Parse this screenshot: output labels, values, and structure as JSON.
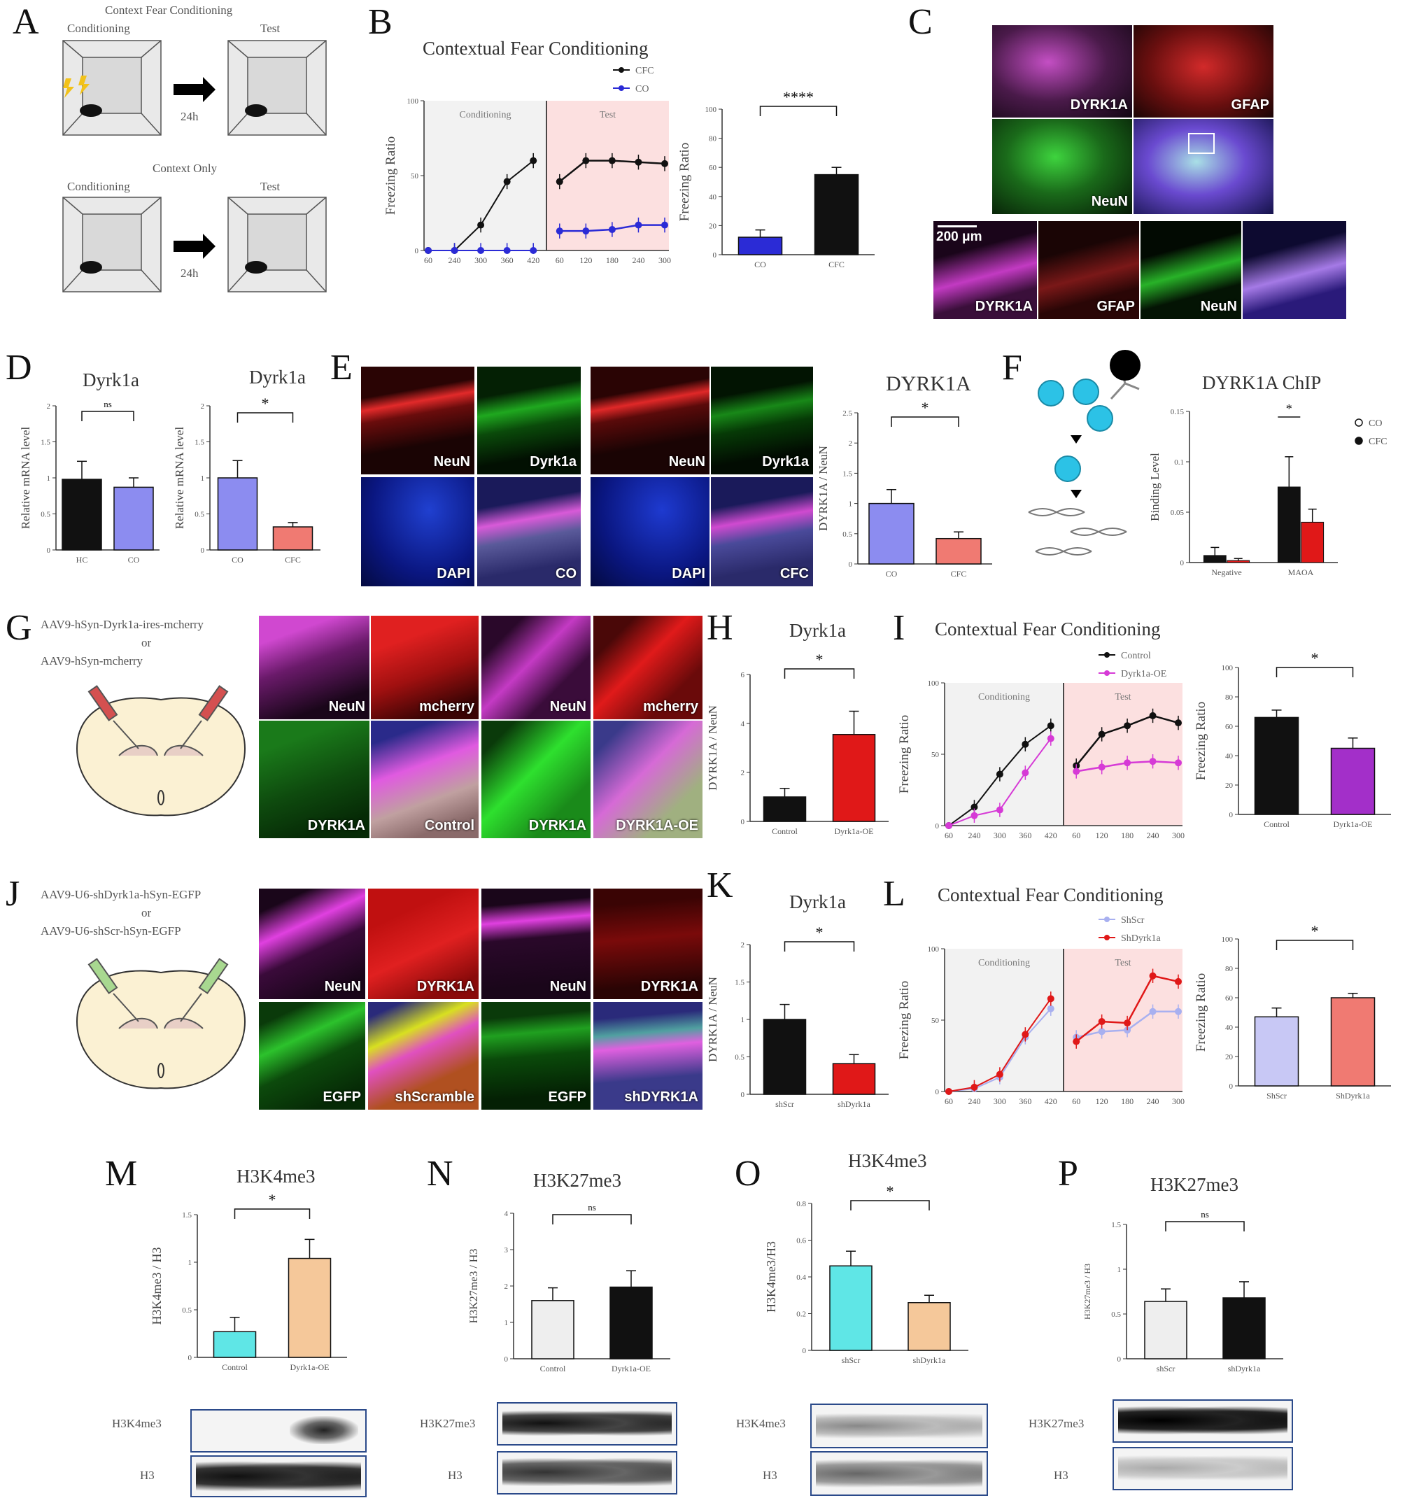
{
  "panel_letters": [
    "A",
    "B",
    "C",
    "D",
    "E",
    "F",
    "G",
    "H",
    "I",
    "J",
    "K",
    "L",
    "M",
    "N",
    "O",
    "P"
  ],
  "A": {
    "top_title": "Context Fear Conditioning",
    "bottom_title": "Context Only",
    "conditioning": "Conditioning",
    "test": "Test",
    "delay": "24h"
  },
  "B": {
    "title": "Contextual  Fear Conditioning",
    "legend": [
      "CFC",
      "CO"
    ],
    "phase_conditioning": "Conditioning",
    "phase_test": "Test",
    "ylabel": "Freezing  Ratio",
    "sig": "****",
    "bar_ylabel": "Freezing  Ratio"
  },
  "C": {
    "labels": [
      "DYRK1A",
      "GFAP",
      "NeuN"
    ],
    "scalebar": "200 μm",
    "strip_labels": [
      "DYRK1A",
      "GFAP",
      "NeuN"
    ]
  },
  "D": {
    "title_left": "Dyrk1a",
    "title_right": "Dyrk1a",
    "ylabel": "Relative mRNA level",
    "ns": "ns",
    "sig": "*"
  },
  "E": {
    "labels": [
      "NeuN",
      "Dyrk1a",
      "NeuN",
      "Dyrk1a",
      "DAPI",
      "CO",
      "DAPI",
      "CFC"
    ],
    "title": "DYRK1A",
    "ylabel": "DYRK1A / NeuN",
    "sig": "*"
  },
  "F": {
    "title": "DYRK1A ChIP",
    "ylabel": "Binding Level",
    "legend": [
      "CO",
      "CFC"
    ],
    "sig": "*"
  },
  "G": {
    "vector1": "AAV9-hSyn-Dyrk1a-ires-mcherry",
    "or": "or",
    "vector2": "AAV9-hSyn-mcherry",
    "labels": [
      "NeuN",
      "mcherry",
      "NeuN",
      "mcherry",
      "DYRK1A",
      "Control",
      "DYRK1A",
      "DYRK1A-OE"
    ]
  },
  "H": {
    "title": "Dyrk1a",
    "ylabel": "DYRK1A / NeuN",
    "sig": "*"
  },
  "I": {
    "title": "Contextual  Fear Conditioning",
    "legend": [
      "Control",
      "Dyrk1a-OE"
    ],
    "phase_conditioning": "Conditioning",
    "phase_test": "Test",
    "ylabel": "Freezing  Ratio",
    "sig": "*"
  },
  "J": {
    "vector1": "AAV9-U6-shDyrk1a-hSyn-EGFP",
    "or": "or",
    "vector2": "AAV9-U6-shScr-hSyn-EGFP",
    "labels": [
      "NeuN",
      "DYRK1A",
      "NeuN",
      "DYRK1A",
      "EGFP",
      "shScramble",
      "EGFP",
      "shDYRK1A"
    ]
  },
  "K": {
    "title": "Dyrk1a",
    "ylabel": "DYRK1A / NeuN",
    "sig": "*"
  },
  "L": {
    "title": "Contextual  Fear Conditioning",
    "legend": [
      "ShScr",
      "ShDyrk1a"
    ],
    "phase_conditioning": "Conditioning",
    "phase_test": "Test",
    "ylabel": "Freezing  Ratio",
    "sig": "*"
  },
  "M": {
    "title": "H3K4me3",
    "ylabel": "H3K4me3 / H3",
    "sig": "*",
    "blot_labels": [
      "H3K4me3",
      "H3"
    ]
  },
  "N": {
    "title": "H3K27me3",
    "ylabel": "H3K27me3 / H3",
    "sig": "ns",
    "blot_labels": [
      "H3K27me3",
      "H3"
    ]
  },
  "O": {
    "title": "H3K4me3",
    "ylabel": "H3K4me3/H3",
    "sig": "*",
    "blot_labels": [
      "H3K4me3",
      "H3"
    ]
  },
  "P": {
    "title": "H3K27me3",
    "ylabel": "H3K27me3 / H3",
    "sig": "ns",
    "blot_labels": [
      "H3K27me3",
      "H3"
    ]
  },
  "chart_data": [
    {
      "id": "B-line",
      "type": "line",
      "title": "Contextual  Fear Conditioning",
      "ylabel": "Freezing  Ratio",
      "x": [
        "60",
        "240",
        "300",
        "360",
        "420",
        "60",
        "120",
        "180",
        "240",
        "300"
      ],
      "ylim": [
        0,
        100
      ],
      "yticks": [
        0,
        50,
        100
      ],
      "series": [
        {
          "name": "CFC",
          "color": "#111111",
          "values": [
            0,
            0,
            17,
            46,
            60,
            46,
            60,
            60,
            59,
            58
          ]
        },
        {
          "name": "CO",
          "color": "#2b2bd6",
          "values": [
            0,
            0,
            0,
            0,
            0,
            13,
            13,
            14,
            17,
            17
          ]
        }
      ]
    },
    {
      "id": "B-bar",
      "type": "bar",
      "ylabel": "Freezing  Ratio",
      "categories": [
        "CO",
        "CFC"
      ],
      "values": [
        12,
        55
      ],
      "errors": [
        5,
        5
      ],
      "colors": [
        "#2b2bd6",
        "#111111"
      ],
      "ylim": [
        0,
        100
      ],
      "yticks": [
        0,
        20,
        40,
        60,
        80,
        100
      ],
      "sig": "****"
    },
    {
      "id": "D-left",
      "type": "bar",
      "title": "Dyrk1a",
      "ylabel": "Relative mRNA level",
      "categories": [
        "HC",
        "CO"
      ],
      "values": [
        0.98,
        0.87
      ],
      "errors": [
        0.25,
        0.13
      ],
      "colors": [
        "#111111",
        "#8c8cf0"
      ],
      "ylim": [
        0,
        2.0
      ],
      "yticks": [
        0.0,
        0.5,
        1.0,
        1.5,
        2.0
      ],
      "sig": "ns"
    },
    {
      "id": "D-right",
      "type": "bar",
      "title": "Dyrk1a",
      "ylabel": "Relative mRNA level",
      "categories": [
        "CO",
        "CFC"
      ],
      "values": [
        1.0,
        0.32
      ],
      "errors": [
        0.24,
        0.06
      ],
      "colors": [
        "#8c8cf0",
        "#f07a72"
      ],
      "ylim": [
        0,
        2.0
      ],
      "yticks": [
        0.0,
        0.5,
        1.0,
        1.5,
        2.0
      ],
      "sig": "*"
    },
    {
      "id": "E-bar",
      "type": "bar",
      "title": "DYRK1A",
      "ylabel": "DYRK1A / NeuN",
      "categories": [
        "CO",
        "CFC"
      ],
      "values": [
        1.0,
        0.42
      ],
      "errors": [
        0.23,
        0.11
      ],
      "colors": [
        "#8c8cf0",
        "#f07a72"
      ],
      "ylim": [
        0,
        2.5
      ],
      "yticks": [
        0.0,
        0.5,
        1.0,
        1.5,
        2.0,
        2.5
      ],
      "sig": "*"
    },
    {
      "id": "F-bar",
      "type": "bar",
      "title": "DYRK1A ChIP",
      "ylabel": "Binding Level",
      "categories": [
        "Negative",
        "MAOA"
      ],
      "series": [
        {
          "name": "CO",
          "color": "#111111",
          "values": [
            0.007,
            0.075
          ],
          "errors": [
            0.008,
            0.03
          ]
        },
        {
          "name": "CFC",
          "color": "#e01818",
          "values": [
            0.002,
            0.04
          ],
          "errors": [
            0.002,
            0.013
          ]
        }
      ],
      "ylim": [
        0,
        0.15
      ],
      "yticks": [
        0.0,
        0.05,
        0.1,
        0.15
      ],
      "sig": "*"
    },
    {
      "id": "H-bar",
      "type": "bar",
      "title": "Dyrk1a",
      "ylabel": "DYRK1A / NeuN",
      "categories": [
        "Control",
        "Dyrk1a-OE"
      ],
      "values": [
        1.0,
        3.55
      ],
      "errors": [
        0.35,
        0.95
      ],
      "colors": [
        "#111111",
        "#e01818"
      ],
      "ylim": [
        0,
        6
      ],
      "yticks": [
        0,
        2,
        4,
        6
      ],
      "sig": "*"
    },
    {
      "id": "I-line",
      "type": "line",
      "title": "Contextual  Fear Conditioning",
      "ylabel": "Freezing  Ratio",
      "x": [
        "60",
        "240",
        "300",
        "360",
        "420",
        "60",
        "120",
        "180",
        "240",
        "300"
      ],
      "ylim": [
        0,
        100
      ],
      "yticks": [
        0,
        50,
        100
      ],
      "series": [
        {
          "name": "Control",
          "color": "#111111",
          "values": [
            0,
            13,
            36,
            57,
            70,
            42,
            64,
            70,
            77,
            72
          ]
        },
        {
          "name": "Dyrk1a-OE",
          "color": "#d63ad6",
          "values": [
            0,
            7,
            11,
            37,
            61,
            38,
            41,
            44,
            45,
            44
          ]
        }
      ]
    },
    {
      "id": "I-bar",
      "type": "bar",
      "ylabel": "Freezing  Ratio",
      "categories": [
        "Control",
        "Dyrk1a-OE"
      ],
      "values": [
        66,
        45
      ],
      "errors": [
        5,
        7
      ],
      "colors": [
        "#111111",
        "#a32fc9"
      ],
      "ylim": [
        0,
        100
      ],
      "yticks": [
        0,
        20,
        40,
        60,
        80,
        100
      ],
      "sig": "*"
    },
    {
      "id": "K-bar",
      "type": "bar",
      "title": "Dyrk1a",
      "ylabel": "DYRK1A / NeuN",
      "categories": [
        "shScr",
        "shDyrk1a"
      ],
      "values": [
        1.0,
        0.41
      ],
      "errors": [
        0.2,
        0.12
      ],
      "colors": [
        "#111111",
        "#e01818"
      ],
      "ylim": [
        0,
        2.0
      ],
      "yticks": [
        0.0,
        0.5,
        1.0,
        1.5,
        2.0
      ],
      "sig": "*"
    },
    {
      "id": "L-line",
      "type": "line",
      "title": "Contextual  Fear Conditioning",
      "ylabel": "Freezing  Ratio",
      "x": [
        "60",
        "240",
        "300",
        "360",
        "420",
        "60",
        "120",
        "180",
        "240",
        "300"
      ],
      "ylim": [
        0,
        100
      ],
      "yticks": [
        0,
        50,
        100
      ],
      "series": [
        {
          "name": "ShScr",
          "color": "#a8b0f0",
          "values": [
            0,
            2,
            10,
            38,
            58,
            38,
            42,
            43,
            56,
            56
          ]
        },
        {
          "name": "ShDyrk1a",
          "color": "#e01818",
          "values": [
            0,
            3,
            12,
            40,
            65,
            35,
            49,
            48,
            81,
            77
          ]
        }
      ]
    },
    {
      "id": "L-bar",
      "type": "bar",
      "ylabel": "Freezing  Ratio",
      "categories": [
        "ShScr",
        "ShDyrk1a"
      ],
      "values": [
        47,
        60
      ],
      "errors": [
        6,
        3
      ],
      "colors": [
        "#c8c8f5",
        "#f07a72"
      ],
      "ylim": [
        0,
        100
      ],
      "yticks": [
        0,
        20,
        40,
        60,
        80,
        100
      ],
      "sig": "*"
    },
    {
      "id": "M-bar",
      "type": "bar",
      "title": "H3K4me3",
      "ylabel": "H3K4me3 / H3",
      "categories": [
        "Control",
        "Dyrk1a-OE"
      ],
      "values": [
        0.27,
        1.04
      ],
      "errors": [
        0.15,
        0.2
      ],
      "colors": [
        "#5fe6e6",
        "#f5c89a"
      ],
      "ylim": [
        0,
        1.5
      ],
      "yticks": [
        0.0,
        0.5,
        1.0,
        1.5
      ],
      "sig": "*"
    },
    {
      "id": "N-bar",
      "type": "bar",
      "title": "H3K27me3",
      "ylabel": "H3K27me3 / H3",
      "categories": [
        "Control",
        "Dyrk1a-OE"
      ],
      "values": [
        1.6,
        1.97
      ],
      "errors": [
        0.35,
        0.45
      ],
      "colors": [
        "#eeeeee",
        "#111111"
      ],
      "ylim": [
        0,
        4
      ],
      "yticks": [
        0,
        1,
        2,
        3,
        4
      ],
      "sig": "ns"
    },
    {
      "id": "O-bar",
      "type": "bar",
      "title": "H3K4me3",
      "ylabel": "H3K4me3/H3",
      "categories": [
        "shScr",
        "shDyrk1a"
      ],
      "values": [
        0.46,
        0.26
      ],
      "errors": [
        0.08,
        0.04
      ],
      "colors": [
        "#5fe6e6",
        "#f5c89a"
      ],
      "ylim": [
        0,
        0.8
      ],
      "yticks": [
        0.0,
        0.2,
        0.4,
        0.6,
        0.8
      ],
      "sig": "*"
    },
    {
      "id": "P-bar",
      "type": "bar",
      "title": "H3K27me3",
      "ylabel": "H3K27me3 / H3",
      "categories": [
        "shScr",
        "shDyrk1a"
      ],
      "values": [
        0.64,
        0.68
      ],
      "errors": [
        0.14,
        0.18
      ],
      "colors": [
        "#eeeeee",
        "#111111"
      ],
      "ylim": [
        0,
        1.5
      ],
      "yticks": [
        0.0,
        0.5,
        1.0,
        1.5
      ],
      "sig": "ns"
    }
  ]
}
